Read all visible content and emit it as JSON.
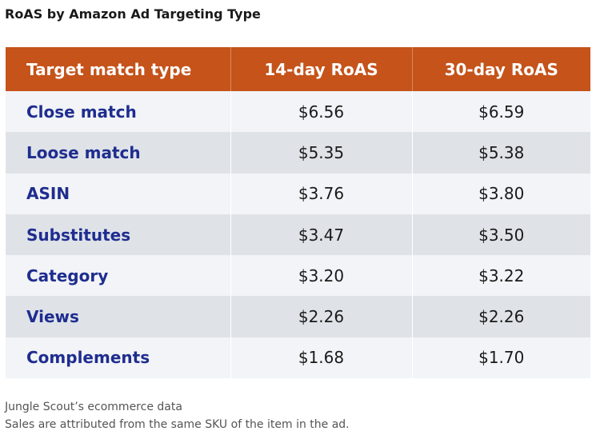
{
  "title": "RoAS by Amazon Ad Targeting Type",
  "chart_data": {
    "type": "table",
    "title": "RoAS by Amazon Ad Targeting Type",
    "columns": [
      "Target match type",
      "14-day RoAS",
      "30-day RoAS"
    ],
    "rows": [
      {
        "type": "Close match",
        "roas_14": "$6.56",
        "roas_30": "$6.59"
      },
      {
        "type": "Loose match",
        "roas_14": "$5.35",
        "roas_30": "$5.38"
      },
      {
        "type": "ASIN",
        "roas_14": "$3.76",
        "roas_30": "$3.80"
      },
      {
        "type": "Substitutes",
        "roas_14": "$3.47",
        "roas_30": "$3.50"
      },
      {
        "type": "Category",
        "roas_14": "$3.20",
        "roas_30": "$3.22"
      },
      {
        "type": "Views",
        "roas_14": "$2.26",
        "roas_30": "$2.26"
      },
      {
        "type": "Complements",
        "roas_14": "$1.68",
        "roas_30": "$1.70"
      }
    ],
    "header_color": "#c5531a",
    "label_color": "#1f2d8f"
  },
  "notes": [
    "Jungle Scout’s ecommerce data",
    "Sales are attributed from the same SKU of the item in the ad."
  ]
}
